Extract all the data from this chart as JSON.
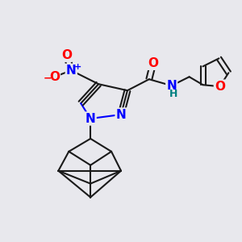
{
  "bg_color": "#e8e8ed",
  "bond_color": "#1a1a1a",
  "bond_width": 1.5,
  "dbo": 0.018,
  "atom_colors": {
    "N": "#0000ff",
    "O": "#ff0000",
    "H": "#008080",
    "C": "#1a1a1a"
  },
  "fs_large": 11,
  "fs_small": 9,
  "fs_tiny": 7
}
